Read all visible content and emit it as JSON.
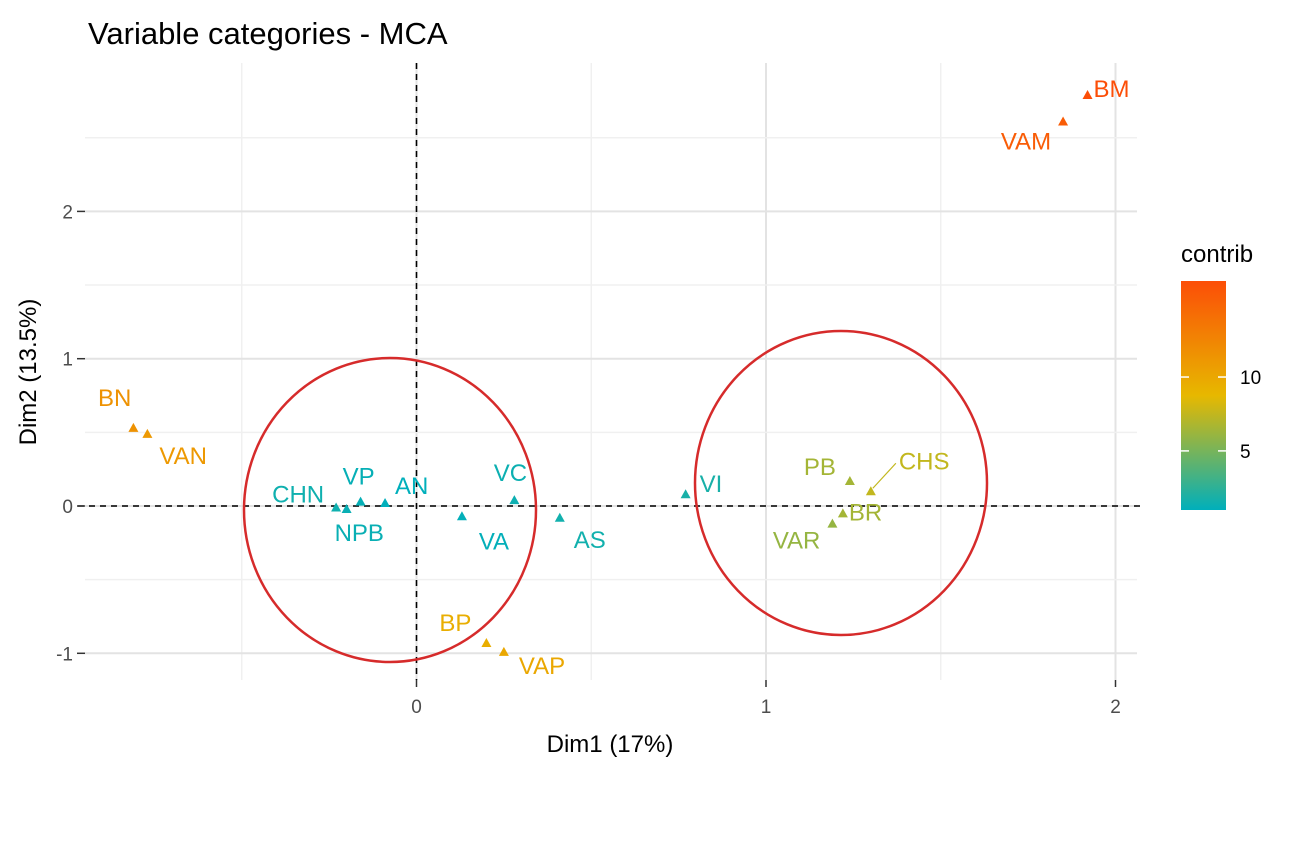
{
  "chart_data": {
    "type": "scatter",
    "title": "Variable categories - MCA",
    "xlabel": "Dim1 (17%)",
    "ylabel": "Dim2 (13.5%)",
    "xlim": [
      -0.97,
      2.06
    ],
    "ylim": [
      -1.2,
      2.9
    ],
    "x_ticks": [
      0,
      1,
      2
    ],
    "y_ticks": [
      -1,
      0,
      1,
      2
    ],
    "x_tick_labels": [
      "0",
      "1",
      "2"
    ],
    "y_tick_labels": [
      "-1",
      "0",
      "1",
      "2"
    ],
    "grid": true,
    "reference_lines": {
      "x": 0,
      "y": 0,
      "style": "dashed"
    },
    "points": [
      {
        "label": "BM",
        "x": 1.92,
        "y": 2.79,
        "contrib": 16.5
      },
      {
        "label": "VAM",
        "x": 1.85,
        "y": 2.61,
        "contrib": 15.5
      },
      {
        "label": "BN",
        "x": -0.81,
        "y": 0.53,
        "contrib": 11.5
      },
      {
        "label": "VAN",
        "x": -0.77,
        "y": 0.49,
        "contrib": 11.0
      },
      {
        "label": "BP",
        "x": 0.2,
        "y": -0.93,
        "contrib": 9.5
      },
      {
        "label": "VAP",
        "x": 0.25,
        "y": -0.99,
        "contrib": 10.0
      },
      {
        "label": "PB",
        "x": 1.24,
        "y": 0.17,
        "contrib": 6.5
      },
      {
        "label": "CHS",
        "x": 1.3,
        "y": 0.1,
        "contrib": 7.5
      },
      {
        "label": "BR",
        "x": 1.22,
        "y": -0.05,
        "contrib": 6.5
      },
      {
        "label": "VAR",
        "x": 1.19,
        "y": -0.12,
        "contrib": 6.0
      },
      {
        "label": "CHN",
        "x": -0.23,
        "y": -0.01,
        "contrib": 1.5
      },
      {
        "label": "VP",
        "x": -0.16,
        "y": 0.03,
        "contrib": 1.2
      },
      {
        "label": "NPB",
        "x": -0.2,
        "y": -0.02,
        "contrib": 1.3
      },
      {
        "label": "AN",
        "x": -0.09,
        "y": 0.02,
        "contrib": 1.0
      },
      {
        "label": "VC",
        "x": 0.28,
        "y": 0.04,
        "contrib": 1.4
      },
      {
        "label": "VA",
        "x": 0.13,
        "y": -0.07,
        "contrib": 1.1
      },
      {
        "label": "AS",
        "x": 0.41,
        "y": -0.08,
        "contrib": 1.6
      },
      {
        "label": "VI",
        "x": 0.77,
        "y": 0.08,
        "contrib": 1.8
      }
    ],
    "legend": {
      "title": "contrib",
      "placement": "right",
      "range": [
        1,
        16.5
      ],
      "ticks": [
        5,
        10
      ],
      "tick_labels": [
        "5",
        "10"
      ],
      "colors": [
        "#00AFBB",
        "#E7B800",
        "#FC4E07"
      ]
    },
    "annotations": [
      {
        "shape": "circle",
        "color": "#D62B2B"
      },
      {
        "shape": "circle",
        "color": "#D62B2B"
      }
    ]
  }
}
